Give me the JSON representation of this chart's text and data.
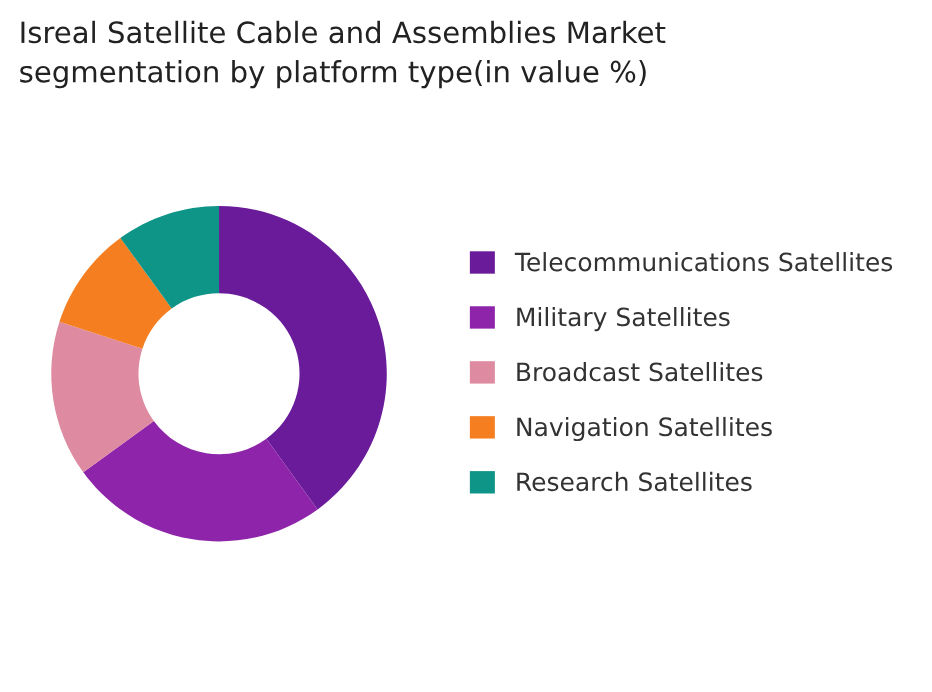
{
  "chart_data": {
    "type": "donut",
    "title": "Isreal Satellite Cable and Assemblies Market\nsegmentation by platform type(in value %)",
    "categories": [
      "Telecommunications Satellites",
      "Military Satellites",
      "Broadcast Satellites",
      "Navigation Satellites",
      "Research Satellites"
    ],
    "values": [
      40,
      25,
      15,
      10,
      10
    ],
    "colors": [
      "#6a1b9a",
      "#8e24aa",
      "#de8aa0",
      "#f57f20",
      "#0f9488"
    ],
    "legend": "right"
  }
}
